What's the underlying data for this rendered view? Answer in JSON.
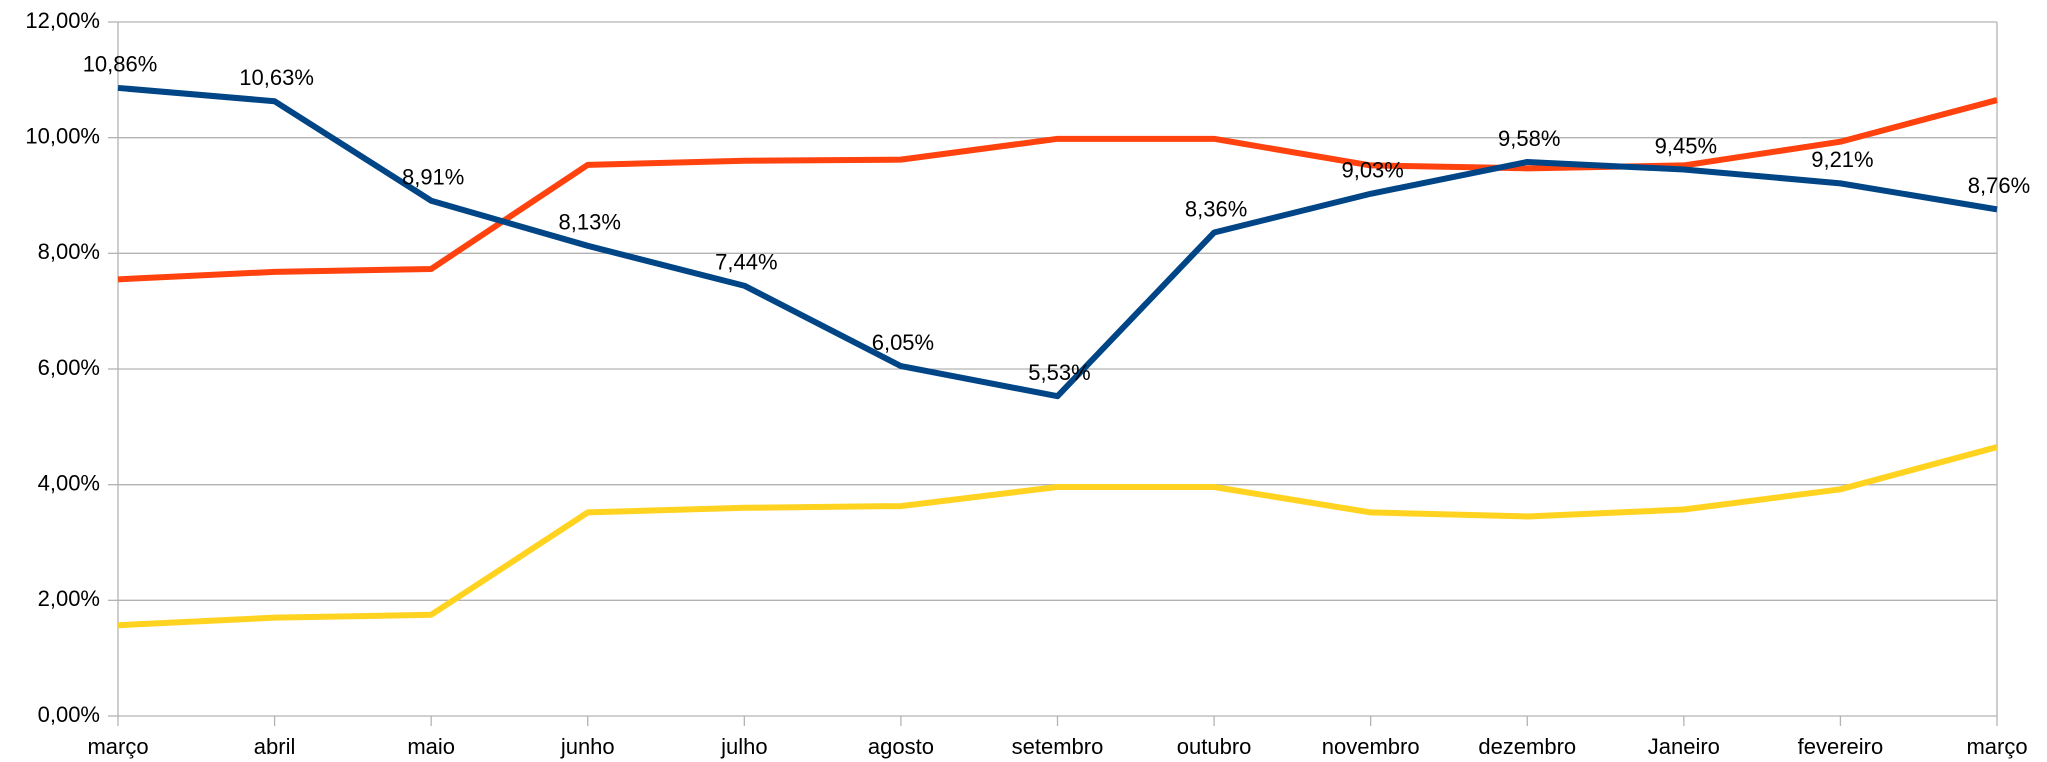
{
  "chart_data": {
    "type": "line",
    "categories": [
      "março",
      "abril",
      "maio",
      "junho",
      "julho",
      "agosto",
      "setembro",
      "outubro",
      "novembro",
      "dezembro",
      "Janeiro",
      "fevereiro",
      "março"
    ],
    "series": [
      {
        "color": "#ff420e",
        "values": [
          7.55,
          7.68,
          7.73,
          9.53,
          9.6,
          9.62,
          9.98,
          9.98,
          9.52,
          9.47,
          9.52,
          9.93,
          10.65
        ]
      },
      {
        "color": "#ffd320",
        "values": [
          1.57,
          1.7,
          1.75,
          3.52,
          3.6,
          3.63,
          3.96,
          3.96,
          3.52,
          3.45,
          3.57,
          3.92,
          4.65
        ]
      },
      {
        "color": "#004586",
        "values": [
          10.86,
          10.63,
          8.91,
          8.13,
          7.44,
          6.05,
          5.53,
          8.36,
          9.03,
          9.58,
          9.45,
          9.21,
          8.76
        ],
        "value_labels": [
          "10,86%",
          "10,63%",
          "8,91%",
          "8,13%",
          "7,44%",
          "6,05%",
          "5,53%",
          "8,36%",
          "9,03%",
          "9,58%",
          "9,45%",
          "9,21%",
          "8,76%"
        ]
      }
    ],
    "ylim": [
      0,
      12
    ],
    "yticks": [
      {
        "value": 0,
        "label": "0,00%"
      },
      {
        "value": 2,
        "label": "2,00%"
      },
      {
        "value": 4,
        "label": "4,00%"
      },
      {
        "value": 6,
        "label": "6,00%"
      },
      {
        "value": 8,
        "label": "8,00%"
      },
      {
        "value": 10,
        "label": "10,00%"
      },
      {
        "value": 12,
        "label": "12,00%"
      }
    ],
    "grid": true
  }
}
